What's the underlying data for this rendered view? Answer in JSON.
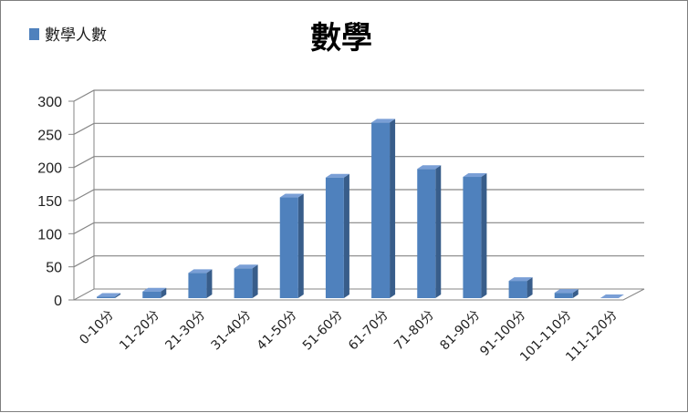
{
  "chart_data": {
    "type": "bar",
    "title": "數學",
    "legend": {
      "position": "top-left",
      "entries": [
        "數學人數"
      ]
    },
    "categories": [
      "0-10分",
      "11-20分",
      "21-30分",
      "31-40分",
      "41-50分",
      "51-60分",
      "61-70分",
      "71-80分",
      "81-90分",
      "91-100分",
      "101-110分",
      "111-120分"
    ],
    "series": [
      {
        "name": "數學人數",
        "values": [
          2,
          10,
          38,
          45,
          152,
          182,
          265,
          195,
          183,
          26,
          8,
          0
        ]
      }
    ],
    "ylim": [
      0,
      300
    ],
    "yticks": [
      "0",
      "50",
      "100",
      "150",
      "200",
      "250",
      "300"
    ],
    "grid": true,
    "colors": {
      "bar_front": "#4f81bd",
      "bar_side": "#385d8a",
      "bar_top": "#7a9fd6",
      "grid": "#868686"
    }
  }
}
